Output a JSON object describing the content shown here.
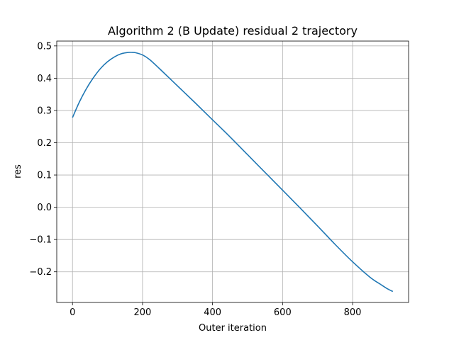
{
  "chart_data": {
    "type": "line",
    "title": "Algorithm 2 (B Update) residual 2 trajectory",
    "xlabel": "Outer iteration",
    "ylabel": "res",
    "xlim": [
      -45,
      960
    ],
    "ylim": [
      -0.295,
      0.515
    ],
    "xticks": [
      0,
      200,
      400,
      600,
      800
    ],
    "yticks": [
      -0.2,
      -0.1,
      0.0,
      0.1,
      0.2,
      0.3,
      0.4,
      0.5
    ],
    "ytick_labels": [
      "−0.2",
      "−0.1",
      "0.0",
      "0.1",
      "0.2",
      "0.3",
      "0.4",
      "0.5"
    ],
    "grid": true,
    "series": [
      {
        "color": "#1f77b4",
        "x": [
          0,
          20,
          40,
          60,
          80,
          100,
          120,
          140,
          160,
          170,
          180,
          200,
          220,
          250,
          300,
          350,
          400,
          450,
          500,
          550,
          600,
          650,
          700,
          750,
          800,
          850,
          880,
          900,
          915
        ],
        "y": [
          0.278,
          0.327,
          0.368,
          0.402,
          0.43,
          0.451,
          0.466,
          0.476,
          0.48,
          0.48,
          0.479,
          0.472,
          0.458,
          0.428,
          0.376,
          0.324,
          0.271,
          0.218,
          0.163,
          0.108,
          0.053,
          -0.002,
          -0.058,
          -0.115,
          -0.169,
          -0.217,
          -0.239,
          -0.253,
          -0.261
        ]
      }
    ]
  }
}
